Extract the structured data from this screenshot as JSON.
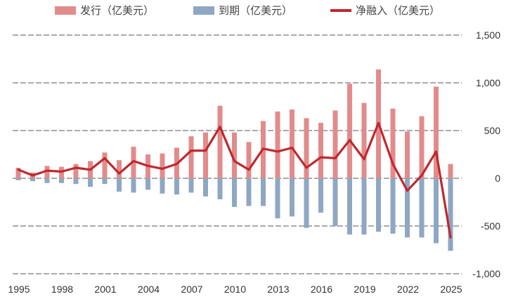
{
  "legend": {
    "issuance": "发行（亿美元）",
    "maturity": "到期（亿美元）",
    "net": "净融入（亿美元）"
  },
  "colors": {
    "issuance": "#e28b8b",
    "maturity": "#8ea7c3",
    "net": "#c0282d",
    "grid": "#555555"
  },
  "chart_data": {
    "type": "bar",
    "title": "",
    "xlabel": "",
    "ylabel": "",
    "ylim": [
      -1000,
      1500
    ],
    "y_ticks": [
      1500,
      1000,
      500,
      0,
      -500,
      -1000
    ],
    "y_tick_labels": [
      "1,500",
      "1,000",
      "500",
      "0",
      "-500",
      "-1,000"
    ],
    "x_tick_labels": [
      "1995",
      "1998",
      "2001",
      "2004",
      "2007",
      "2010",
      "2013",
      "2016",
      "2019",
      "2022",
      "2025"
    ],
    "categories": [
      "1995",
      "1996",
      "1997",
      "1998",
      "1999",
      "2000",
      "2001",
      "2002",
      "2003",
      "2004",
      "2005",
      "2006",
      "2007",
      "2008",
      "2009",
      "2010",
      "2011",
      "2012",
      "2013",
      "2014",
      "2015",
      "2016",
      "2017",
      "2018",
      "2019",
      "2020",
      "2021",
      "2022",
      "2023",
      "2024",
      "2025"
    ],
    "series": [
      {
        "name": "发行（亿美元）",
        "type": "bar",
        "values": [
          110,
          60,
          130,
          120,
          150,
          180,
          270,
          190,
          330,
          250,
          260,
          320,
          440,
          480,
          760,
          480,
          380,
          600,
          700,
          720,
          630,
          580,
          710,
          990,
          790,
          1140,
          730,
          490,
          650,
          960,
          150
        ]
      },
      {
        "name": "到期（亿美元）",
        "type": "bar",
        "values": [
          -20,
          -30,
          -50,
          -50,
          -60,
          -90,
          -60,
          -140,
          -150,
          -120,
          -160,
          -170,
          -150,
          -190,
          -220,
          -300,
          -290,
          -290,
          -420,
          -400,
          -520,
          -360,
          -500,
          -590,
          -590,
          -560,
          -580,
          -620,
          -620,
          -680,
          -760
        ]
      },
      {
        "name": "净融入（亿美元）",
        "type": "line",
        "values": [
          90,
          30,
          80,
          70,
          110,
          90,
          210,
          50,
          180,
          130,
          100,
          150,
          290,
          290,
          540,
          180,
          90,
          310,
          280,
          320,
          110,
          220,
          210,
          400,
          200,
          580,
          150,
          -130,
          30,
          280,
          -620
        ]
      }
    ]
  }
}
